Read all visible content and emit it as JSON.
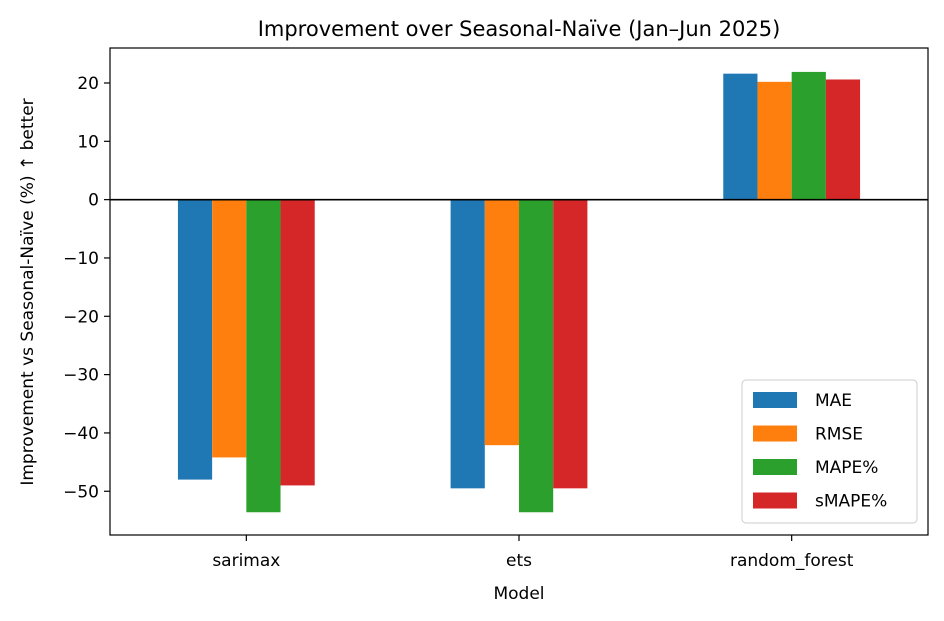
{
  "chart_data": {
    "type": "bar",
    "title": "Improvement over Seasonal-Naïve (Jan–Jun 2025)",
    "xlabel": "Model",
    "ylabel": "Improvement vs Seasonal-Naïve (%)  ↑ better",
    "categories": [
      "sarimax",
      "ets",
      "random_forest"
    ],
    "series": [
      {
        "name": "MAE",
        "color": "#1f77b4",
        "values": [
          -48.0,
          -49.5,
          21.6
        ]
      },
      {
        "name": "RMSE",
        "color": "#ff7f0e",
        "values": [
          -44.2,
          -42.1,
          20.2
        ]
      },
      {
        "name": "MAPE%",
        "color": "#2ca02c",
        "values": [
          -53.6,
          -53.6,
          21.9
        ]
      },
      {
        "name": "sMAPE%",
        "color": "#d62728",
        "values": [
          -49.0,
          -49.5,
          20.6
        ]
      }
    ],
    "ylim": [
      -57.5,
      26.0
    ],
    "yticks": [
      20,
      10,
      0,
      -10,
      -20,
      -30,
      -40,
      -50
    ],
    "ytick_labels": [
      "20",
      "10",
      "0",
      "−10",
      "−20",
      "−30",
      "−40",
      "−50"
    ],
    "zero_line": true,
    "grid": false,
    "legend_position": "lower-right"
  }
}
